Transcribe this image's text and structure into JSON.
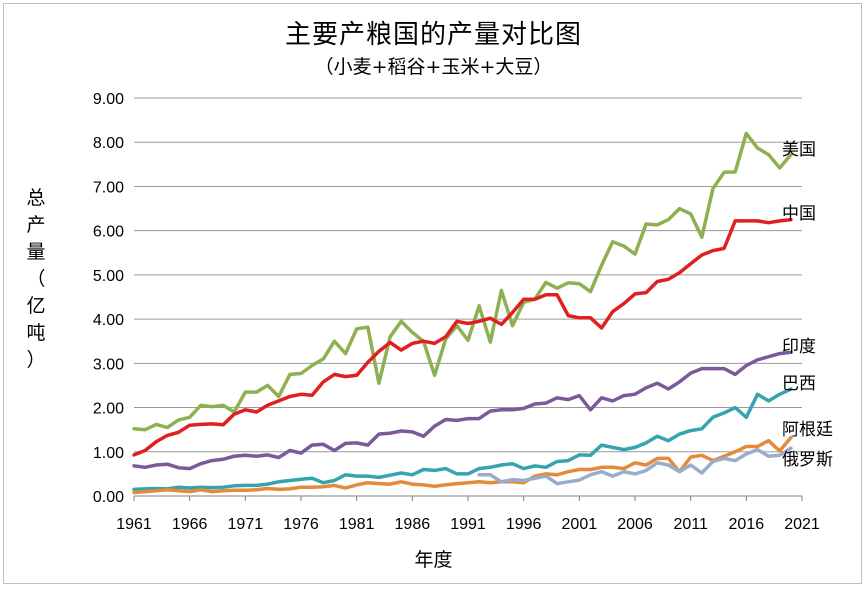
{
  "chart_data": {
    "type": "line",
    "title": "主要产粮国的产量对比图",
    "subtitle": "（小麦+稻谷+玉米+大豆）",
    "xlabel": "年度",
    "ylabel": "总产量（亿吨）",
    "ylim": [
      0,
      9
    ],
    "xlim": [
      1961,
      2021
    ],
    "y_ticks": [
      "0.00",
      "1.00",
      "2.00",
      "3.00",
      "4.00",
      "5.00",
      "6.00",
      "7.00",
      "8.00",
      "9.00"
    ],
    "x_ticks": [
      "1961",
      "1966",
      "1971",
      "1976",
      "1981",
      "1986",
      "1991",
      "1996",
      "2001",
      "2006",
      "2011",
      "2016",
      "2021"
    ],
    "grid": "horizontal",
    "legend": "end-of-line labels",
    "x_start": 1961,
    "series": [
      {
        "name": "美国",
        "color": "#8db050",
        "values": [
          1.52,
          1.5,
          1.62,
          1.55,
          1.72,
          1.78,
          2.05,
          2.02,
          2.05,
          1.9,
          2.35,
          2.35,
          2.5,
          2.25,
          2.75,
          2.77,
          2.95,
          3.1,
          3.5,
          3.22,
          3.78,
          3.82,
          2.55,
          3.6,
          3.95,
          3.7,
          3.5,
          2.73,
          3.55,
          3.85,
          3.52,
          4.3,
          3.48,
          4.65,
          3.85,
          4.38,
          4.45,
          4.83,
          4.7,
          4.82,
          4.8,
          4.62,
          5.22,
          5.75,
          5.65,
          5.47,
          6.15,
          6.13,
          6.25,
          6.5,
          6.38,
          5.85,
          6.95,
          7.32,
          7.33,
          8.2,
          7.87,
          7.72,
          7.42,
          7.72
        ]
      },
      {
        "name": "中国",
        "color": "#e02020",
        "values": [
          0.93,
          1.03,
          1.23,
          1.37,
          1.44,
          1.6,
          1.62,
          1.63,
          1.61,
          1.85,
          1.95,
          1.9,
          2.05,
          2.15,
          2.25,
          2.3,
          2.28,
          2.58,
          2.75,
          2.7,
          2.73,
          3.02,
          3.27,
          3.47,
          3.3,
          3.45,
          3.5,
          3.45,
          3.6,
          3.95,
          3.9,
          3.95,
          4.02,
          3.88,
          4.15,
          4.45,
          4.45,
          4.55,
          4.55,
          4.08,
          4.03,
          4.03,
          3.8,
          4.17,
          4.35,
          4.57,
          4.6,
          4.85,
          4.9,
          5.05,
          5.25,
          5.45,
          5.55,
          5.6,
          6.22,
          6.22,
          6.22,
          6.18,
          6.22,
          6.25
        ]
      },
      {
        "name": "印度",
        "color": "#7a5a9a",
        "values": [
          0.68,
          0.65,
          0.7,
          0.72,
          0.64,
          0.62,
          0.73,
          0.8,
          0.83,
          0.9,
          0.92,
          0.9,
          0.93,
          0.87,
          1.03,
          0.97,
          1.15,
          1.17,
          1.03,
          1.19,
          1.2,
          1.15,
          1.4,
          1.42,
          1.47,
          1.45,
          1.35,
          1.58,
          1.73,
          1.71,
          1.75,
          1.75,
          1.92,
          1.95,
          1.95,
          1.98,
          2.08,
          2.1,
          2.22,
          2.18,
          2.27,
          1.95,
          2.22,
          2.15,
          2.27,
          2.3,
          2.45,
          2.55,
          2.42,
          2.58,
          2.78,
          2.88,
          2.88,
          2.88,
          2.75,
          2.95,
          3.08,
          3.15,
          3.22,
          3.25
        ]
      },
      {
        "name": "巴西",
        "color": "#35a3b0",
        "values": [
          0.15,
          0.16,
          0.17,
          0.16,
          0.2,
          0.18,
          0.2,
          0.19,
          0.2,
          0.23,
          0.24,
          0.24,
          0.27,
          0.32,
          0.35,
          0.38,
          0.4,
          0.3,
          0.35,
          0.48,
          0.45,
          0.45,
          0.42,
          0.47,
          0.52,
          0.48,
          0.6,
          0.58,
          0.62,
          0.5,
          0.5,
          0.62,
          0.65,
          0.7,
          0.73,
          0.62,
          0.68,
          0.65,
          0.78,
          0.8,
          0.93,
          0.92,
          1.15,
          1.1,
          1.05,
          1.1,
          1.2,
          1.35,
          1.25,
          1.4,
          1.48,
          1.52,
          1.78,
          1.88,
          2.0,
          1.78,
          2.3,
          2.15,
          2.3,
          2.42
        ]
      },
      {
        "name": "阿根廷",
        "color": "#e38a3c",
        "values": [
          0.08,
          0.1,
          0.12,
          0.14,
          0.12,
          0.1,
          0.14,
          0.1,
          0.12,
          0.13,
          0.13,
          0.14,
          0.17,
          0.15,
          0.16,
          0.2,
          0.2,
          0.21,
          0.24,
          0.18,
          0.25,
          0.3,
          0.28,
          0.27,
          0.32,
          0.27,
          0.25,
          0.22,
          0.25,
          0.28,
          0.3,
          0.32,
          0.3,
          0.32,
          0.32,
          0.3,
          0.45,
          0.5,
          0.48,
          0.55,
          0.6,
          0.6,
          0.65,
          0.65,
          0.62,
          0.75,
          0.7,
          0.85,
          0.85,
          0.55,
          0.88,
          0.92,
          0.8,
          0.9,
          1.0,
          1.12,
          1.12,
          1.25,
          1.02,
          1.32
        ]
      },
      {
        "name": "俄罗斯",
        "color": "#9aaccb",
        "values": [
          null,
          null,
          null,
          null,
          null,
          null,
          null,
          null,
          null,
          null,
          null,
          null,
          null,
          null,
          null,
          null,
          null,
          null,
          null,
          null,
          null,
          null,
          null,
          null,
          null,
          null,
          null,
          null,
          null,
          null,
          null,
          0.48,
          0.48,
          0.32,
          0.37,
          0.35,
          0.4,
          0.45,
          0.28,
          0.32,
          0.36,
          0.48,
          0.55,
          0.45,
          0.55,
          0.5,
          0.58,
          0.75,
          0.7,
          0.55,
          0.7,
          0.52,
          0.78,
          0.85,
          0.8,
          0.95,
          1.05,
          0.9,
          0.92,
          1.08
        ]
      }
    ]
  }
}
